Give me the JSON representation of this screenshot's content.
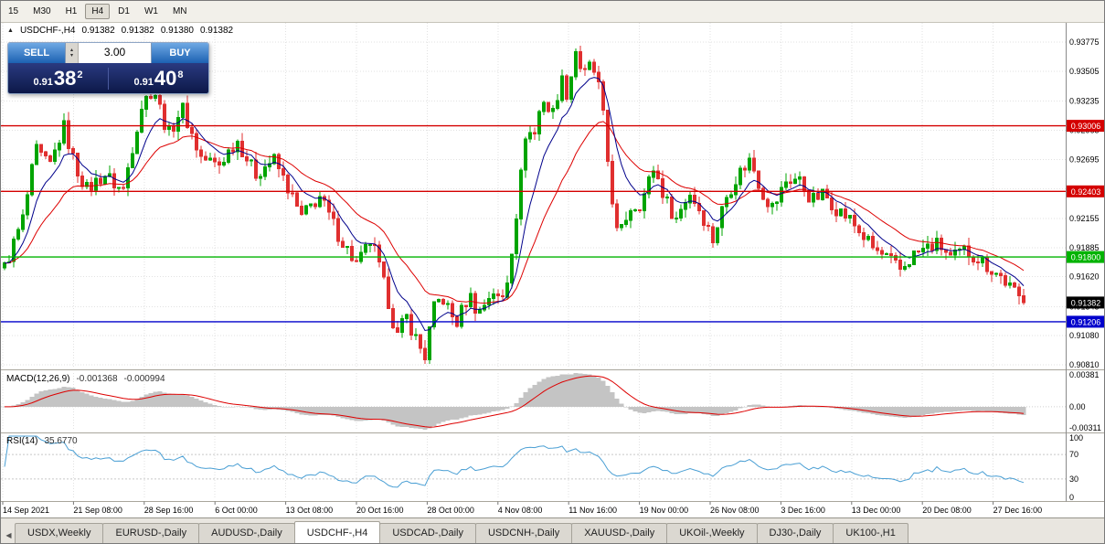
{
  "toolbar": {
    "timeframes": [
      {
        "label": "15",
        "active": false
      },
      {
        "label": "M30",
        "active": false
      },
      {
        "label": "H1",
        "active": false
      },
      {
        "label": "H4",
        "active": true
      },
      {
        "label": "D1",
        "active": false
      },
      {
        "label": "W1",
        "active": false
      },
      {
        "label": "MN",
        "active": false
      }
    ]
  },
  "chart_header": {
    "collapse_icon": "▲",
    "symbol": "USDCHF-,H4",
    "open": "0.91382",
    "high": "0.91382",
    "low": "0.91380",
    "close": "0.91382"
  },
  "trade_panel": {
    "sell_label": "SELL",
    "buy_label": "BUY",
    "volume": "3.00",
    "sell_price": {
      "small": "0.91",
      "big": "38",
      "sup": "2"
    },
    "buy_price": {
      "small": "0.91",
      "big": "40",
      "sup": "8"
    }
  },
  "chart_data": {
    "type": "candlestick",
    "title": "USDCHF-,H4",
    "ylim": [
      0.9081,
      0.93775
    ],
    "candle_count": 224,
    "price_axis_ticks": [
      "0.93775",
      "0.93505",
      "0.93235",
      "0.92965",
      "0.92695",
      "0.92425",
      "0.92155",
      "0.91885",
      "0.91620",
      "0.91345",
      "0.91080",
      "0.90810"
    ],
    "time_axis_ticks": [
      "14 Sep 2021",
      "21 Sep 08:00",
      "28 Sep 16:00",
      "6 Oct 00:00",
      "13 Oct 08:00",
      "20 Oct 16:00",
      "28 Oct 00:00",
      "4 Nov 08:00",
      "11 Nov 16:00",
      "19 Nov 00:00",
      "26 Nov 08:00",
      "3 Dec 16:00",
      "13 Dec 00:00",
      "20 Dec 08:00",
      "27 Dec 16:00"
    ],
    "price_lines": [
      {
        "price": 0.93006,
        "label": "0.93006",
        "color": "#d40000"
      },
      {
        "price": 0.92403,
        "label": "0.92403",
        "color": "#d40000"
      },
      {
        "price": 0.918,
        "label": "0.91800",
        "color": "#00b300"
      },
      {
        "price": 0.91206,
        "label": "0.91206",
        "color": "#0000cc"
      }
    ],
    "current_price": {
      "value": 0.91382,
      "label": "0.91382",
      "color": "#000000"
    },
    "price_path": [
      [
        0.0,
        0.917
      ],
      [
        0.018,
        0.9215
      ],
      [
        0.031,
        0.9278
      ],
      [
        0.044,
        0.9262
      ],
      [
        0.058,
        0.93
      ],
      [
        0.07,
        0.9262
      ],
      [
        0.081,
        0.9242
      ],
      [
        0.098,
        0.9256
      ],
      [
        0.116,
        0.924
      ],
      [
        0.134,
        0.9318
      ],
      [
        0.146,
        0.9336
      ],
      [
        0.161,
        0.9292
      ],
      [
        0.174,
        0.9318
      ],
      [
        0.192,
        0.9272
      ],
      [
        0.21,
        0.9264
      ],
      [
        0.228,
        0.9288
      ],
      [
        0.246,
        0.9256
      ],
      [
        0.264,
        0.927
      ],
      [
        0.277,
        0.9246
      ],
      [
        0.291,
        0.9216
      ],
      [
        0.309,
        0.9236
      ],
      [
        0.328,
        0.92
      ],
      [
        0.346,
        0.9172
      ],
      [
        0.36,
        0.9196
      ],
      [
        0.376,
        0.9142
      ],
      [
        0.385,
        0.9106
      ],
      [
        0.394,
        0.9126
      ],
      [
        0.407,
        0.9098
      ],
      [
        0.413,
        0.9088
      ],
      [
        0.42,
        0.913
      ],
      [
        0.429,
        0.9144
      ],
      [
        0.443,
        0.9118
      ],
      [
        0.456,
        0.9146
      ],
      [
        0.465,
        0.9128
      ],
      [
        0.479,
        0.915
      ],
      [
        0.487,
        0.9136
      ],
      [
        0.494,
        0.9162
      ],
      [
        0.505,
        0.924
      ],
      [
        0.512,
        0.93
      ],
      [
        0.519,
        0.9288
      ],
      [
        0.528,
        0.9328
      ],
      [
        0.537,
        0.9308
      ],
      [
        0.546,
        0.9344
      ],
      [
        0.553,
        0.9328
      ],
      [
        0.56,
        0.9372
      ],
      [
        0.568,
        0.9345
      ],
      [
        0.576,
        0.9358
      ],
      [
        0.585,
        0.933
      ],
      [
        0.594,
        0.925
      ],
      [
        0.602,
        0.9195
      ],
      [
        0.613,
        0.9225
      ],
      [
        0.625,
        0.923
      ],
      [
        0.637,
        0.9262
      ],
      [
        0.649,
        0.9232
      ],
      [
        0.659,
        0.9215
      ],
      [
        0.672,
        0.924
      ],
      [
        0.683,
        0.9222
      ],
      [
        0.695,
        0.9196
      ],
      [
        0.708,
        0.9235
      ],
      [
        0.719,
        0.9255
      ],
      [
        0.732,
        0.927
      ],
      [
        0.743,
        0.924
      ],
      [
        0.754,
        0.9225
      ],
      [
        0.767,
        0.925
      ],
      [
        0.779,
        0.9252
      ],
      [
        0.792,
        0.9232
      ],
      [
        0.804,
        0.9238
      ],
      [
        0.817,
        0.9224
      ],
      [
        0.829,
        0.9215
      ],
      [
        0.842,
        0.92
      ],
      [
        0.854,
        0.9186
      ],
      [
        0.867,
        0.9178
      ],
      [
        0.879,
        0.9168
      ],
      [
        0.892,
        0.9182
      ],
      [
        0.904,
        0.9188
      ],
      [
        0.917,
        0.9192
      ],
      [
        0.929,
        0.9178
      ],
      [
        0.942,
        0.9186
      ],
      [
        0.954,
        0.918
      ],
      [
        0.967,
        0.917
      ],
      [
        0.98,
        0.916
      ],
      [
        0.988,
        0.915
      ],
      [
        1.0,
        0.9138
      ]
    ],
    "colors": {
      "bull": "#00a400",
      "bear": "#e02f2f",
      "ma_fast": "#00008b",
      "ma_slow": "#dd0000",
      "macd_hist": "#c4c4c4",
      "macd_signal": "#dd0000",
      "rsi": "#4a9fd4",
      "grid": "#e2e2e2"
    },
    "macd": {
      "label": "MACD(12,26,9)",
      "value": "-0.001368",
      "signal": "-0.000994",
      "axis": [
        "0.00381",
        "0.00",
        "-0.00311"
      ],
      "params": [
        12,
        26,
        9
      ]
    },
    "rsi": {
      "label": "RSI(14)",
      "value": "35.6770",
      "axis": [
        "100",
        "70",
        "30",
        "0"
      ],
      "levels": [
        70,
        30
      ],
      "period": 14
    }
  },
  "tabs": [
    {
      "label": "USDX,Weekly",
      "active": false
    },
    {
      "label": "EURUSD-,Daily",
      "active": false
    },
    {
      "label": "AUDUSD-,Daily",
      "active": false
    },
    {
      "label": "USDCHF-,H4",
      "active": true
    },
    {
      "label": "USDCAD-,Daily",
      "active": false
    },
    {
      "label": "USDCNH-,Daily",
      "active": false
    },
    {
      "label": "XAUUSD-,Daily",
      "active": false
    },
    {
      "label": "UKOil-,Weekly",
      "active": false
    },
    {
      "label": "DJ30-,Daily",
      "active": false
    },
    {
      "label": "UK100-,H1",
      "active": false
    }
  ]
}
